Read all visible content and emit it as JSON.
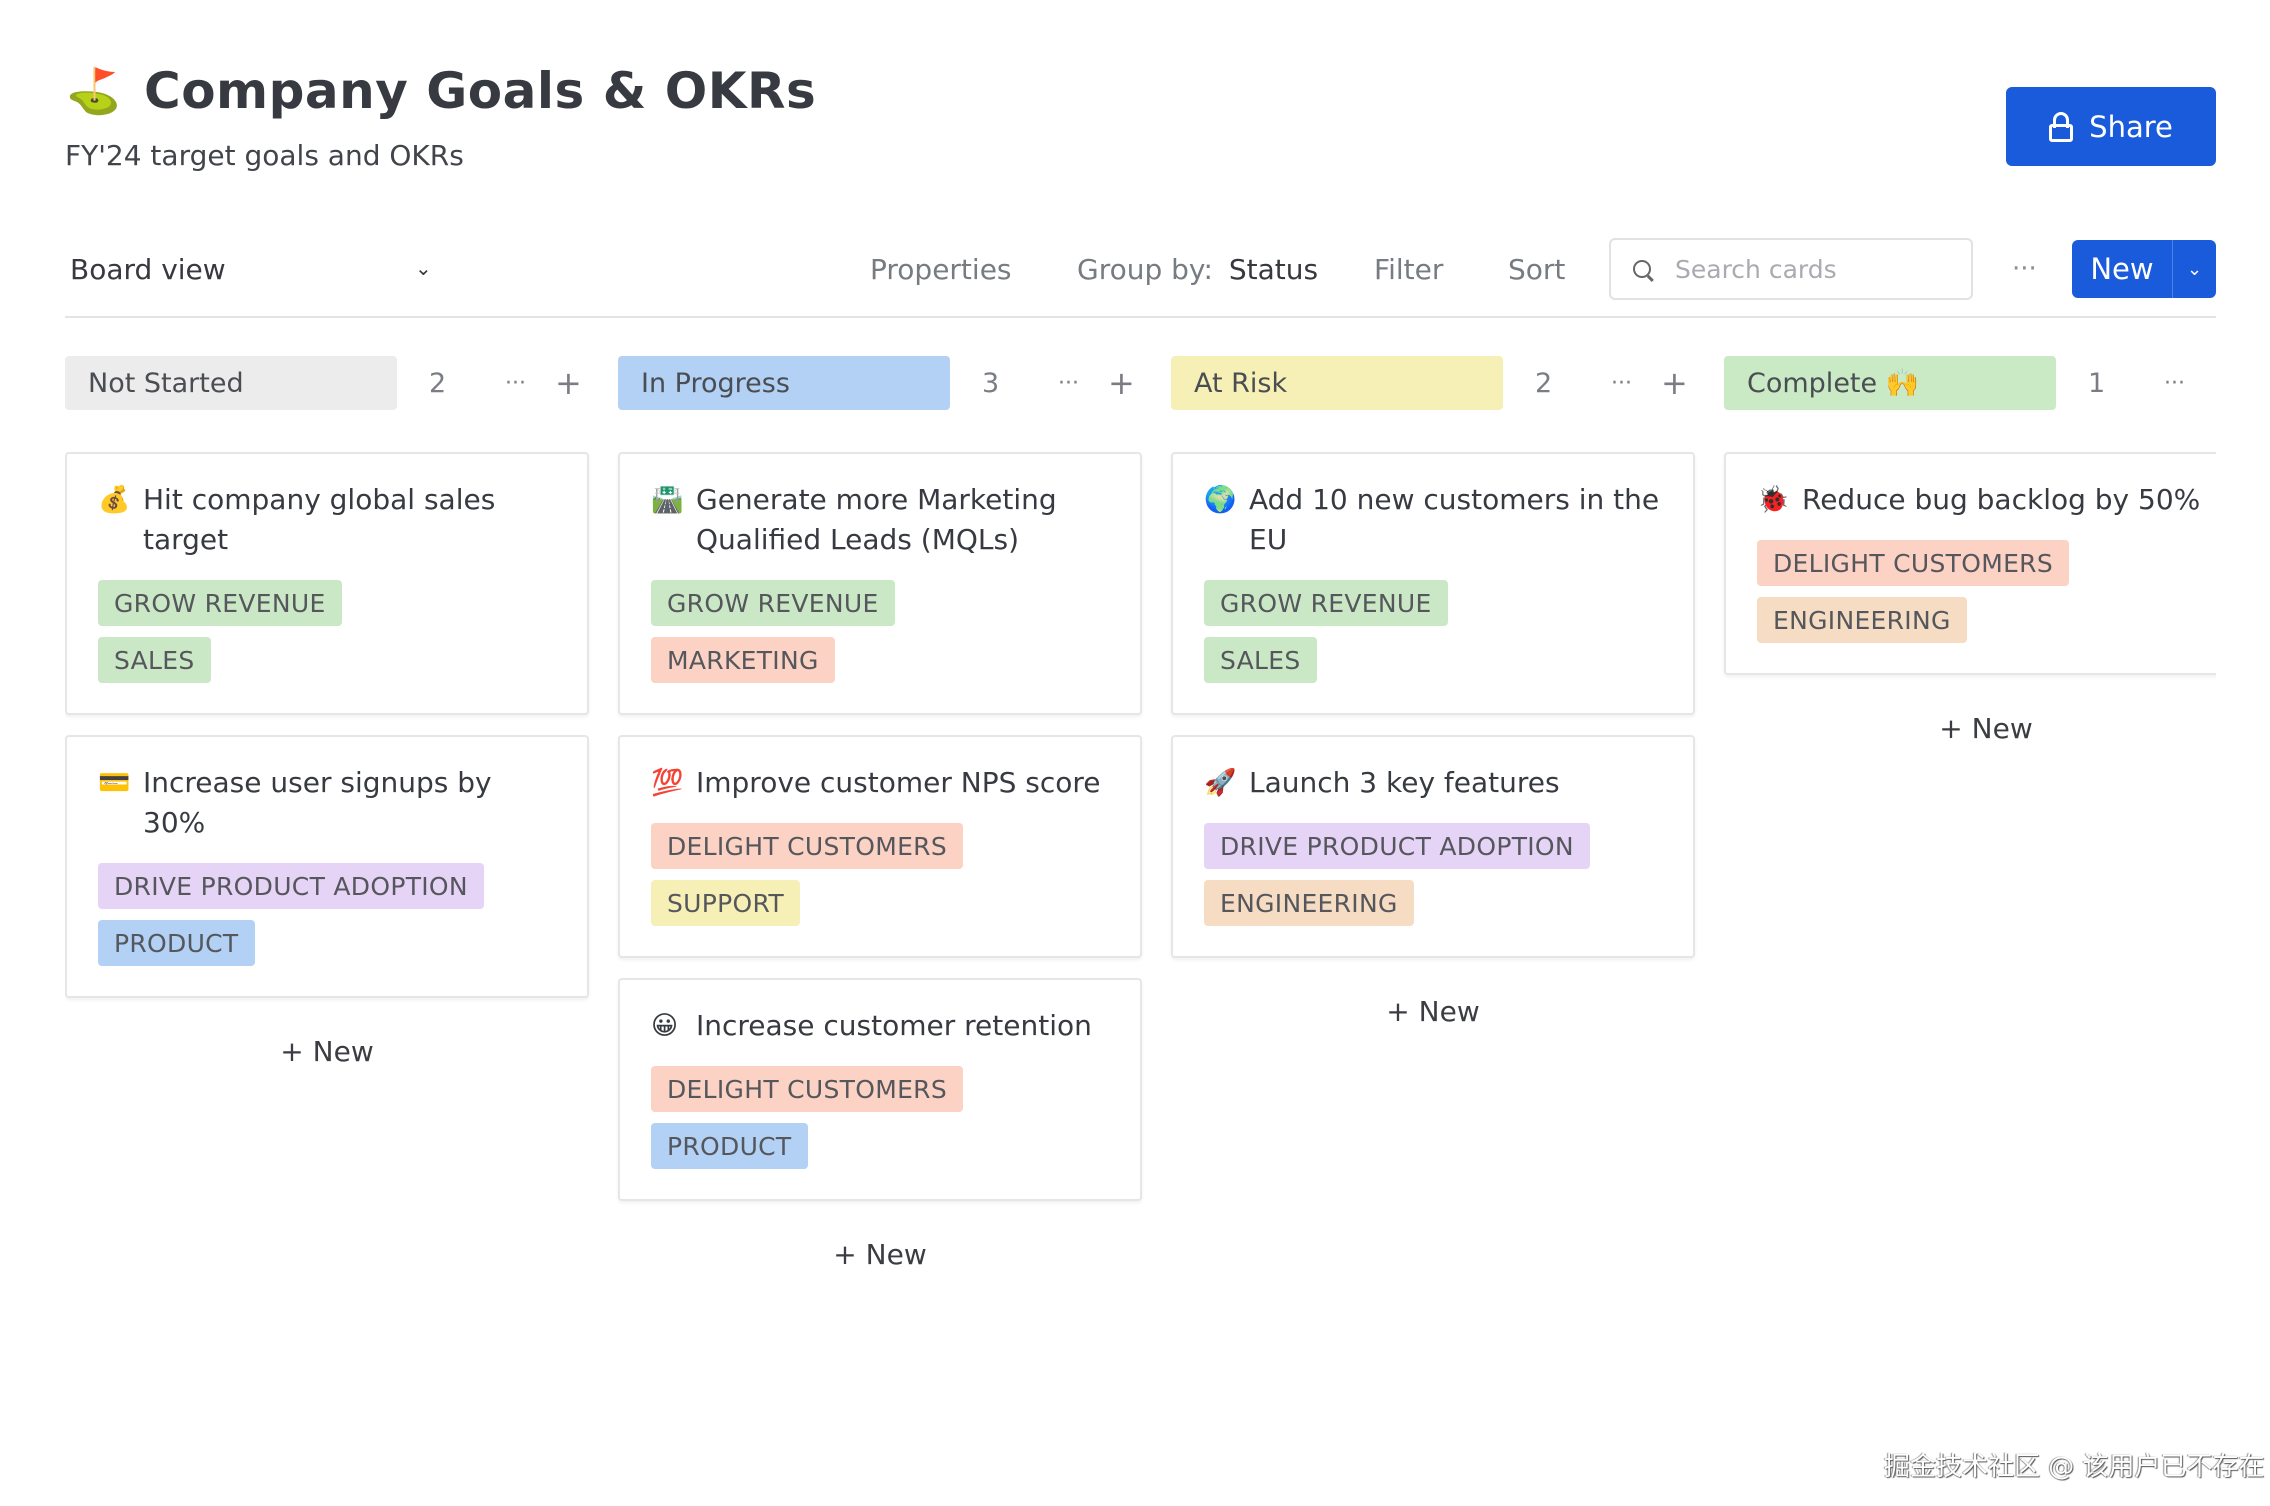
{
  "header": {
    "emoji": "⛳",
    "title": "Company Goals & OKRs",
    "subtitle": "FY'24 target goals and OKRs",
    "share_label": "Share"
  },
  "toolbar": {
    "view": "Board view",
    "properties": "Properties",
    "group_by_label": "Group by:",
    "group_by_value": "Status",
    "filter": "Filter",
    "sort": "Sort",
    "search_placeholder": "Search cards",
    "more": "···",
    "new_label": "New"
  },
  "colors": {
    "accent": "#1a5bdc"
  },
  "columns": [
    {
      "label": "Not Started",
      "count": "2",
      "color": "#ececec",
      "add_label": "+ New",
      "cards": [
        {
          "emoji": "💰",
          "title": "Hit company global sales target",
          "tags": [
            {
              "label": "GROW REVENUE",
              "color": "#cbe8c6"
            },
            {
              "label": "SALES",
              "color": "#cbe8c6"
            }
          ]
        },
        {
          "emoji": "💳",
          "title": "Increase user signups by 30%",
          "tags": [
            {
              "label": "DRIVE PRODUCT ADOPTION",
              "color": "#e6d4f7"
            },
            {
              "label": "PRODUCT",
              "color": "#b2d1f5"
            }
          ]
        }
      ]
    },
    {
      "label": "In Progress",
      "count": "3",
      "color": "#b2d1f5",
      "add_label": "+ New",
      "cards": [
        {
          "emoji": "🛣️",
          "title": "Generate more Marketing Qualified Leads (MQLs)",
          "tags": [
            {
              "label": "GROW REVENUE",
              "color": "#cbe8c6"
            },
            {
              "label": "MARKETING",
              "color": "#fbd2c4"
            }
          ]
        },
        {
          "emoji": "💯",
          "title": "Improve customer NPS score",
          "tags": [
            {
              "label": "DELIGHT CUSTOMERS",
              "color": "#fbd2c4"
            },
            {
              "label": "SUPPORT",
              "color": "#f6efb6"
            }
          ]
        },
        {
          "emoji": "😀",
          "title": "Increase customer retention",
          "tags": [
            {
              "label": "DELIGHT CUSTOMERS",
              "color": "#fbd2c4"
            },
            {
              "label": "PRODUCT",
              "color": "#b2d1f5"
            }
          ]
        }
      ]
    },
    {
      "label": "At Risk",
      "count": "2",
      "color": "#f6efb6",
      "add_label": "+ New",
      "cards": [
        {
          "emoji": "🌍",
          "title": "Add 10 new customers in the EU",
          "tags": [
            {
              "label": "GROW REVENUE",
              "color": "#cbe8c6"
            },
            {
              "label": "SALES",
              "color": "#cbe8c6"
            }
          ]
        },
        {
          "emoji": "🚀",
          "title": "Launch 3 key features",
          "tags": [
            {
              "label": "DRIVE PRODUCT ADOPTION",
              "color": "#e6d4f7"
            },
            {
              "label": "ENGINEERING",
              "color": "#f5dcc3"
            }
          ]
        }
      ]
    },
    {
      "label": "Complete 🙌",
      "count": "1",
      "color": "#c9eac4",
      "add_label": "+ New",
      "cards": [
        {
          "emoji": "🐞",
          "title": "Reduce bug backlog by 50%",
          "tags": [
            {
              "label": "DELIGHT CUSTOMERS",
              "color": "#fbd2c4"
            },
            {
              "label": "ENGINEERING",
              "color": "#f5dcc3"
            }
          ]
        }
      ]
    }
  ],
  "watermark": "掘金技术社区 @ 该用户已不存在"
}
